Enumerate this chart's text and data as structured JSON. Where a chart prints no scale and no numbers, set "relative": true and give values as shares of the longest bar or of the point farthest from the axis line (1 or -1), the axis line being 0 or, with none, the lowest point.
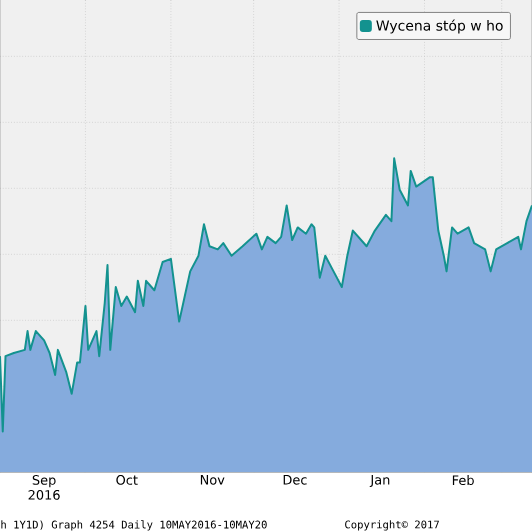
{
  "chart_data": {
    "type": "area",
    "relative": true,
    "grid": true,
    "legend": "top right",
    "x": [
      "2016-08-31",
      "2016-09-01",
      "2016-09-02",
      "2016-09-05",
      "2016-09-09",
      "2016-09-10",
      "2016-09-11",
      "2016-09-13",
      "2016-09-16",
      "2016-09-18",
      "2016-09-20",
      "2016-09-21",
      "2016-09-24",
      "2016-09-26",
      "2016-09-28",
      "2016-09-29",
      "2016-10-01",
      "2016-10-02",
      "2016-10-05",
      "2016-10-06",
      "2016-10-08",
      "2016-10-09",
      "2016-10-10",
      "2016-10-12",
      "2016-10-14",
      "2016-10-16",
      "2016-10-19",
      "2016-10-20",
      "2016-10-22",
      "2016-10-23",
      "2016-10-26",
      "2016-10-29",
      "2016-11-01",
      "2016-11-04",
      "2016-11-06",
      "2016-11-08",
      "2016-11-11",
      "2016-11-13",
      "2016-11-15",
      "2016-11-18",
      "2016-11-20",
      "2016-11-23",
      "2016-11-27",
      "2016-12-02",
      "2016-12-04",
      "2016-12-06",
      "2016-12-09",
      "2016-12-11",
      "2016-12-13",
      "2016-12-15",
      "2016-12-17",
      "2016-12-20",
      "2016-12-22",
      "2016-12-23",
      "2016-12-25",
      "2016-12-27",
      "2016-12-30",
      "2017-01-02",
      "2017-01-04",
      "2017-01-06",
      "2017-01-11",
      "2017-01-14",
      "2017-01-18",
      "2017-01-20",
      "2017-01-21",
      "2017-01-23",
      "2017-01-26",
      "2017-01-27",
      "2017-01-29",
      "2017-02-03",
      "2017-02-04",
      "2017-02-06",
      "2017-02-08",
      "2017-02-09",
      "2017-02-11",
      "2017-02-13",
      "2017-02-17",
      "2017-02-19",
      "2017-02-23",
      "2017-02-25",
      "2017-02-27",
      "2017-03-03",
      "2017-03-07",
      "2017-03-08",
      "2017-03-10",
      "2017-03-12"
    ],
    "series": [
      {
        "name": "Wycena stóp w ho",
        "color": "#13928f",
        "values": [
          0.37,
          0.13,
          0.37,
          0.38,
          0.39,
          0.45,
          0.39,
          0.45,
          0.42,
          0.38,
          0.31,
          0.39,
          0.32,
          0.25,
          0.35,
          0.35,
          0.53,
          0.39,
          0.45,
          0.37,
          0.54,
          0.66,
          0.39,
          0.59,
          0.53,
          0.56,
          0.51,
          0.61,
          0.53,
          0.61,
          0.58,
          0.67,
          0.68,
          0.48,
          0.56,
          0.64,
          0.69,
          0.79,
          0.72,
          0.71,
          0.73,
          0.69,
          0.72,
          0.76,
          0.71,
          0.75,
          0.73,
          0.75,
          0.85,
          0.74,
          0.78,
          0.76,
          0.79,
          0.78,
          0.62,
          0.69,
          0.64,
          0.59,
          0.69,
          0.77,
          0.72,
          0.77,
          0.82,
          0.8,
          1.0,
          0.9,
          0.85,
          0.96,
          0.91,
          0.94,
          0.94,
          0.77,
          0.69,
          0.64,
          0.78,
          0.76,
          0.78,
          0.73,
          0.71,
          0.64,
          0.71,
          0.73,
          0.75,
          0.71,
          0.8,
          0.85
        ]
      }
    ],
    "xlim": [
      "2016-08-31",
      "2017-03-12"
    ],
    "xticks": [
      {
        "value": "2016-09-16",
        "label": "Sep 2016"
      },
      {
        "value": "2016-10-16",
        "label": "Oct"
      },
      {
        "value": "2016-11-16",
        "label": "Nov"
      },
      {
        "value": "2016-12-16",
        "label": "Dec"
      },
      {
        "value": "2017-01-16",
        "label": "Jan"
      },
      {
        "value": "2017-02-15",
        "label": "Feb"
      },
      {
        "value": "2016-10-01",
        "label": null
      },
      {
        "value": "2016-11-01",
        "label": null
      },
      {
        "value": "2016-12-01",
        "label": null
      },
      {
        "value": "2017-01-01",
        "label": null
      },
      {
        "value": "2017-02-01",
        "label": null
      },
      {
        "value": "2017-03-01",
        "label": null
      }
    ],
    "annotations": [
      "h 1Y1D) Graph 4254  Daily 10MAY2016-10MAY20",
      "Copyright© 2017"
    ]
  }
}
